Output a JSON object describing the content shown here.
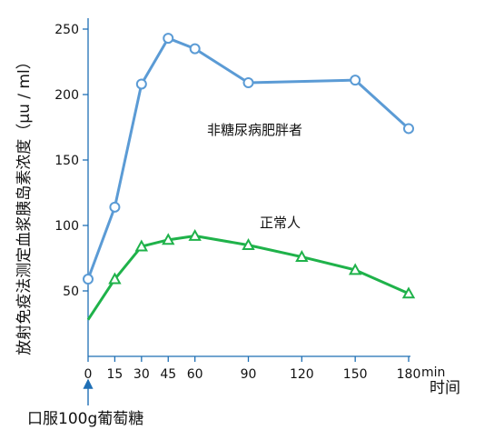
{
  "chart_data": {
    "type": "line",
    "ylabel": "放射免疫法测定血浆胰岛素浓度（μu / ml）",
    "xlabel": "时间",
    "x_unit": "min",
    "annotation": "口服100g葡萄糖",
    "x_ticks": [
      0,
      15,
      30,
      45,
      60,
      90,
      120,
      150,
      180
    ],
    "y_ticks": [
      50,
      100,
      150,
      200,
      250
    ],
    "xlim": [
      0,
      180
    ],
    "ylim": [
      0,
      255
    ],
    "grid": false,
    "series": [
      {
        "name": "非糖尿病肥胖者",
        "color": "#5b9bd5",
        "marker": "circle",
        "x": [
          0,
          15,
          30,
          45,
          60,
          90,
          150,
          180
        ],
        "y": [
          59,
          114,
          208,
          243,
          235,
          209,
          211,
          174
        ]
      },
      {
        "name": "正常人",
        "color": "#1fb24a",
        "marker": "triangle",
        "x": [
          0,
          15,
          30,
          45,
          60,
          90,
          120,
          150,
          180
        ],
        "y": [
          28,
          59,
          84,
          89,
          92,
          85,
          76,
          66,
          48
        ]
      }
    ]
  }
}
